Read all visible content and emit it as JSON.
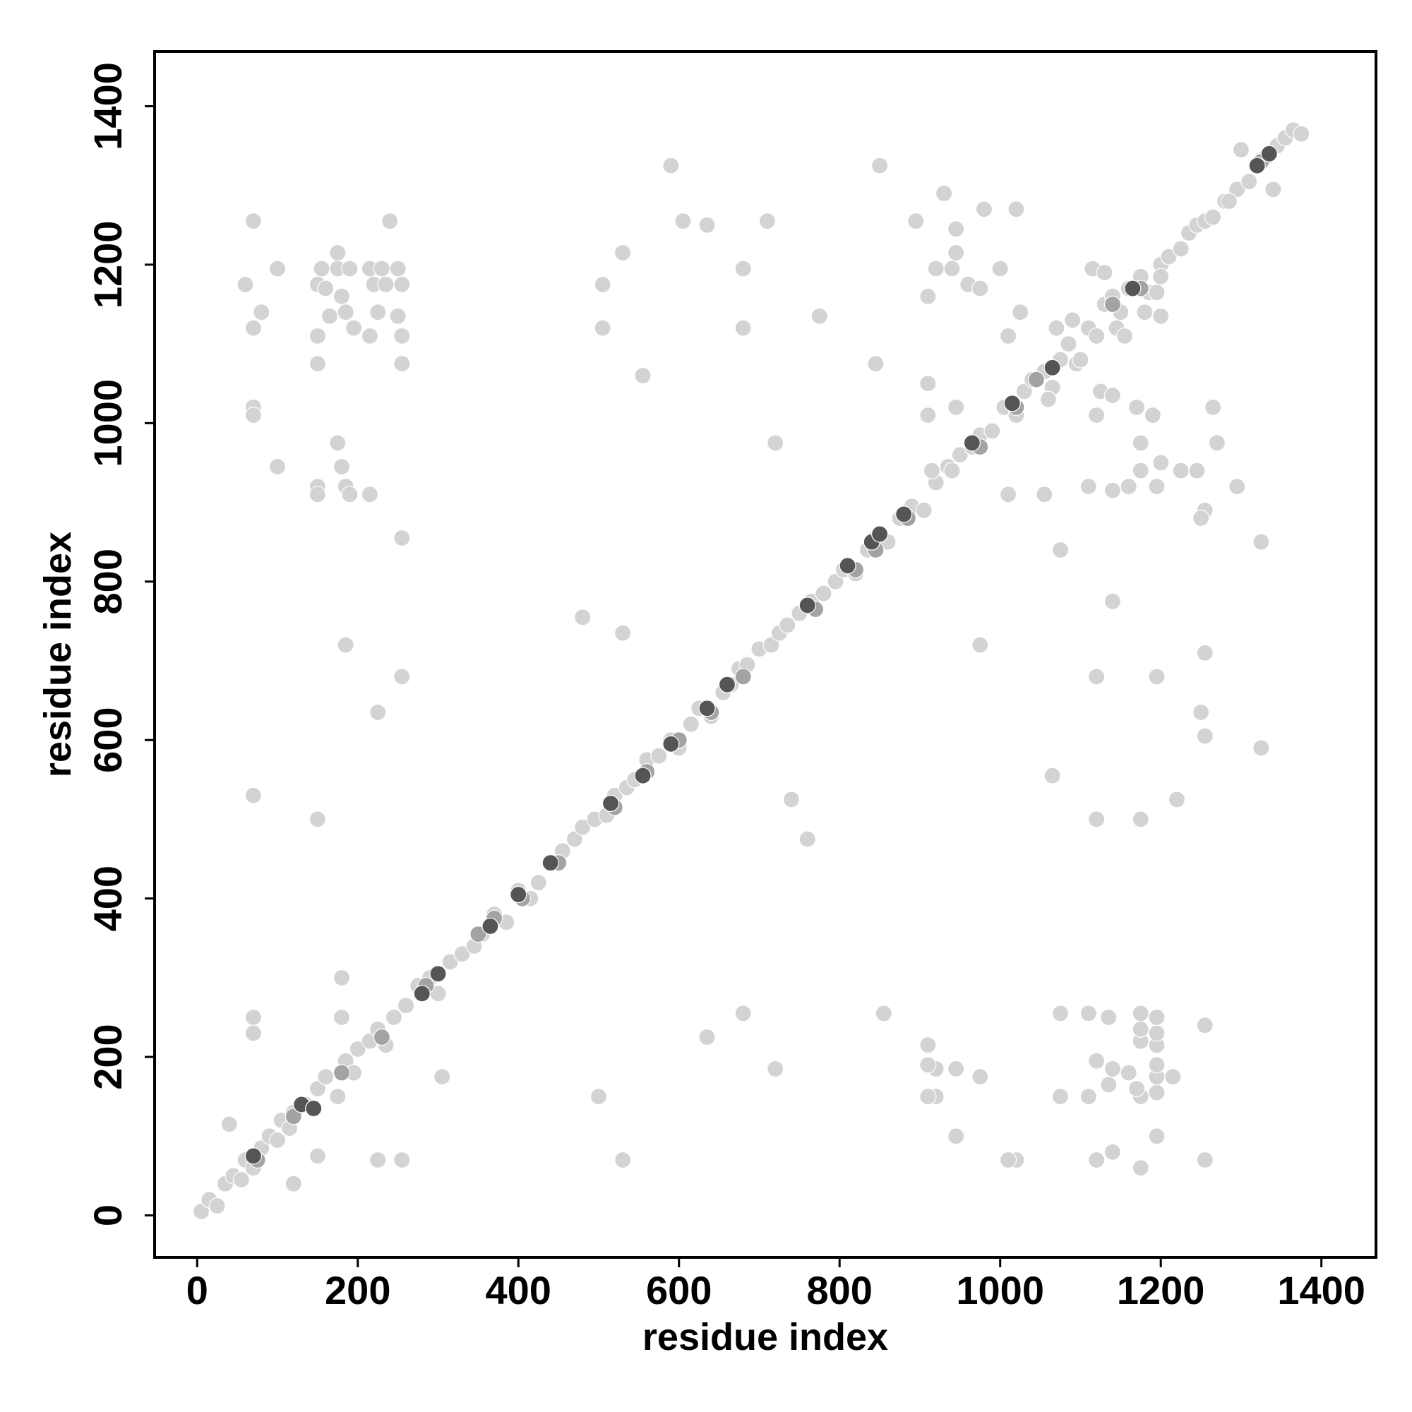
{
  "chart_data": {
    "type": "scatter",
    "xlabel": "residue index",
    "ylabel": "residue index",
    "xlim": [
      -53,
      1468
    ],
    "ylim": [
      -53,
      1469
    ],
    "xticks": [
      0,
      200,
      400,
      600,
      800,
      1000,
      1200,
      1400
    ],
    "yticks": [
      0,
      200,
      400,
      600,
      800,
      1000,
      1200,
      1400
    ],
    "series": [
      {
        "color": "#d3d3d3",
        "x": [
          5,
          15,
          25,
          35,
          45,
          55,
          60,
          70,
          80,
          90,
          100,
          105,
          115,
          120,
          135,
          150,
          160,
          175,
          185,
          195,
          200,
          215,
          225,
          235,
          245,
          260,
          275,
          290,
          300,
          315,
          330,
          345,
          355,
          370,
          385,
          400,
          415,
          425,
          440,
          455,
          470,
          480,
          495,
          510,
          520,
          535,
          545,
          560,
          575,
          590,
          600,
          615,
          625,
          640,
          655,
          665,
          675,
          685,
          700,
          715,
          725,
          735,
          750,
          765,
          780,
          795,
          805,
          820,
          835,
          845,
          860,
          875,
          890,
          905,
          920,
          935,
          950,
          965,
          975,
          990,
          1005,
          1020,
          1030,
          1040,
          1055,
          1065,
          1075,
          1085,
          1095,
          1110,
          1120,
          1130,
          1140,
          1150,
          1160,
          1175,
          1185,
          1200,
          1210,
          1225,
          1235,
          1245,
          1255,
          1265,
          1280,
          1295,
          1310,
          1320,
          1330,
          1345,
          1355,
          1365,
          1375,
          150,
          155,
          160,
          165,
          150,
          175,
          175,
          180,
          185,
          190,
          195,
          215,
          220,
          230,
          235,
          250,
          255,
          250,
          255,
          215,
          225,
          240,
          70,
          60,
          80,
          70,
          100,
          255,
          150,
          70,
          70,
          100,
          150,
          150,
          175,
          180,
          185,
          190,
          215,
          255,
          185,
          255,
          225,
          70,
          150,
          1175,
          1195,
          1170,
          1135,
          1110,
          1195,
          1215,
          1160,
          1140,
          1195,
          1120,
          1195,
          1175,
          1195,
          1175,
          1195,
          1175,
          1135,
          1110,
          1255,
          1255,
          1175,
          1140,
          1120,
          1195,
          1075,
          1075,
          1020,
          1010,
          945,
          920,
          910,
          975,
          945,
          920,
          910,
          910,
          855,
          720,
          680,
          635,
          530,
          500,
          505,
          505,
          530,
          590,
          605,
          635,
          680,
          680,
          710,
          775,
          850,
          845,
          555,
          720,
          480,
          530,
          740,
          760,
          305,
          180,
          180,
          70,
          70,
          225,
          255,
          150,
          120,
          40,
          910,
          920,
          945,
          945,
          940,
          960,
          975,
          1000,
          1020,
          1025,
          1010,
          980,
          930,
          895,
          910,
          910,
          945,
          940,
          915,
          1010,
          1055,
          1075,
          1065,
          1125,
          1140,
          1120,
          1170,
          1175,
          1190,
          1200,
          1175,
          1195,
          1225,
          1245,
          1265,
          1270,
          1295,
          1255,
          1250,
          1325,
          1140,
          1120,
          1195,
          1255,
          1250,
          1255,
          1325,
          1220,
          1120,
          1175,
          1140,
          1110,
          1160,
          975,
          1285,
          1300,
          1340,
          1200,
          1195,
          1115,
          1130,
          1145,
          1155,
          1180,
          1200,
          1070,
          1060,
          1100,
          1090
        ],
        "y": [
          5,
          20,
          12,
          40,
          50,
          45,
          70,
          60,
          85,
          100,
          95,
          120,
          110,
          130,
          140,
          160,
          175,
          150,
          195,
          180,
          210,
          220,
          235,
          215,
          250,
          265,
          290,
          300,
          280,
          320,
          330,
          340,
          355,
          380,
          370,
          410,
          400,
          420,
          445,
          460,
          475,
          490,
          500,
          505,
          530,
          540,
          550,
          575,
          580,
          600,
          590,
          620,
          640,
          630,
          660,
          670,
          690,
          695,
          715,
          720,
          735,
          745,
          760,
          775,
          785,
          800,
          815,
          810,
          840,
          855,
          850,
          880,
          895,
          890,
          925,
          945,
          960,
          970,
          985,
          990,
          1020,
          1010,
          1040,
          1055,
          1065,
          1045,
          1080,
          1100,
          1075,
          1120,
          1110,
          1150,
          1160,
          1140,
          1170,
          1185,
          1165,
          1200,
          1210,
          1220,
          1240,
          1250,
          1255,
          1260,
          1280,
          1295,
          1305,
          1325,
          1335,
          1350,
          1360,
          1370,
          1365,
          1175,
          1195,
          1170,
          1135,
          1110,
          1195,
          1215,
          1160,
          1140,
          1195,
          1120,
          1195,
          1175,
          1195,
          1175,
          1195,
          1175,
          1135,
          1110,
          1110,
          1140,
          1255,
          1255,
          1175,
          1140,
          1120,
          1195,
          1075,
          1075,
          1020,
          1010,
          945,
          920,
          910,
          975,
          945,
          920,
          910,
          910,
          855,
          720,
          680,
          635,
          530,
          500,
          150,
          155,
          160,
          165,
          150,
          175,
          175,
          180,
          185,
          190,
          195,
          215,
          220,
          230,
          235,
          250,
          255,
          250,
          255,
          240,
          70,
          60,
          80,
          70,
          100,
          255,
          150,
          70,
          70,
          100,
          150,
          150,
          175,
          185,
          185,
          190,
          215,
          255,
          185,
          255,
          225,
          70,
          150,
          1175,
          1120,
          1215,
          1325,
          1255,
          1250,
          1195,
          1120,
          1255,
          1135,
          1325,
          1075,
          1060,
          975,
          755,
          735,
          525,
          475,
          175,
          300,
          250,
          250,
          230,
          70,
          70,
          75,
          40,
          115,
          1160,
          1195,
          1245,
          1215,
          1195,
          1175,
          1170,
          1195,
          1270,
          1140,
          1110,
          1270,
          1290,
          1255,
          1050,
          1010,
          1020,
          940,
          940,
          910,
          910,
          840,
          555,
          1040,
          1035,
          1010,
          1020,
          975,
          1010,
          950,
          940,
          920,
          940,
          940,
          1020,
          975,
          920,
          890,
          880,
          850,
          775,
          680,
          680,
          710,
          635,
          605,
          590,
          525,
          500,
          500,
          915,
          920,
          920,
          720,
          1280,
          1345,
          1295,
          1135,
          1165,
          1195,
          1190,
          1120,
          1110,
          1140,
          1185,
          1120,
          1030,
          1080,
          1130
        ]
      },
      {
        "color": "#a3a3a3",
        "x": [
          75,
          120,
          180,
          230,
          285,
          350,
          370,
          405,
          450,
          520,
          560,
          600,
          640,
          680,
          770,
          820,
          845,
          885,
          975,
          1020,
          1045,
          1140,
          1175,
          1325
        ],
        "y": [
          70,
          125,
          180,
          225,
          290,
          355,
          375,
          400,
          445,
          515,
          560,
          600,
          635,
          680,
          765,
          815,
          840,
          880,
          970,
          1020,
          1055,
          1150,
          1170,
          1330
        ]
      },
      {
        "color": "#555555",
        "x": [
          70,
          130,
          145,
          280,
          300,
          365,
          400,
          440,
          515,
          555,
          590,
          635,
          660,
          760,
          810,
          840,
          850,
          880,
          965,
          1015,
          1065,
          1165,
          1320,
          1335
        ],
        "y": [
          75,
          140,
          135,
          280,
          305,
          365,
          405,
          445,
          520,
          555,
          595,
          640,
          670,
          770,
          820,
          850,
          860,
          885,
          975,
          1025,
          1070,
          1170,
          1325,
          1340
        ]
      }
    ]
  }
}
